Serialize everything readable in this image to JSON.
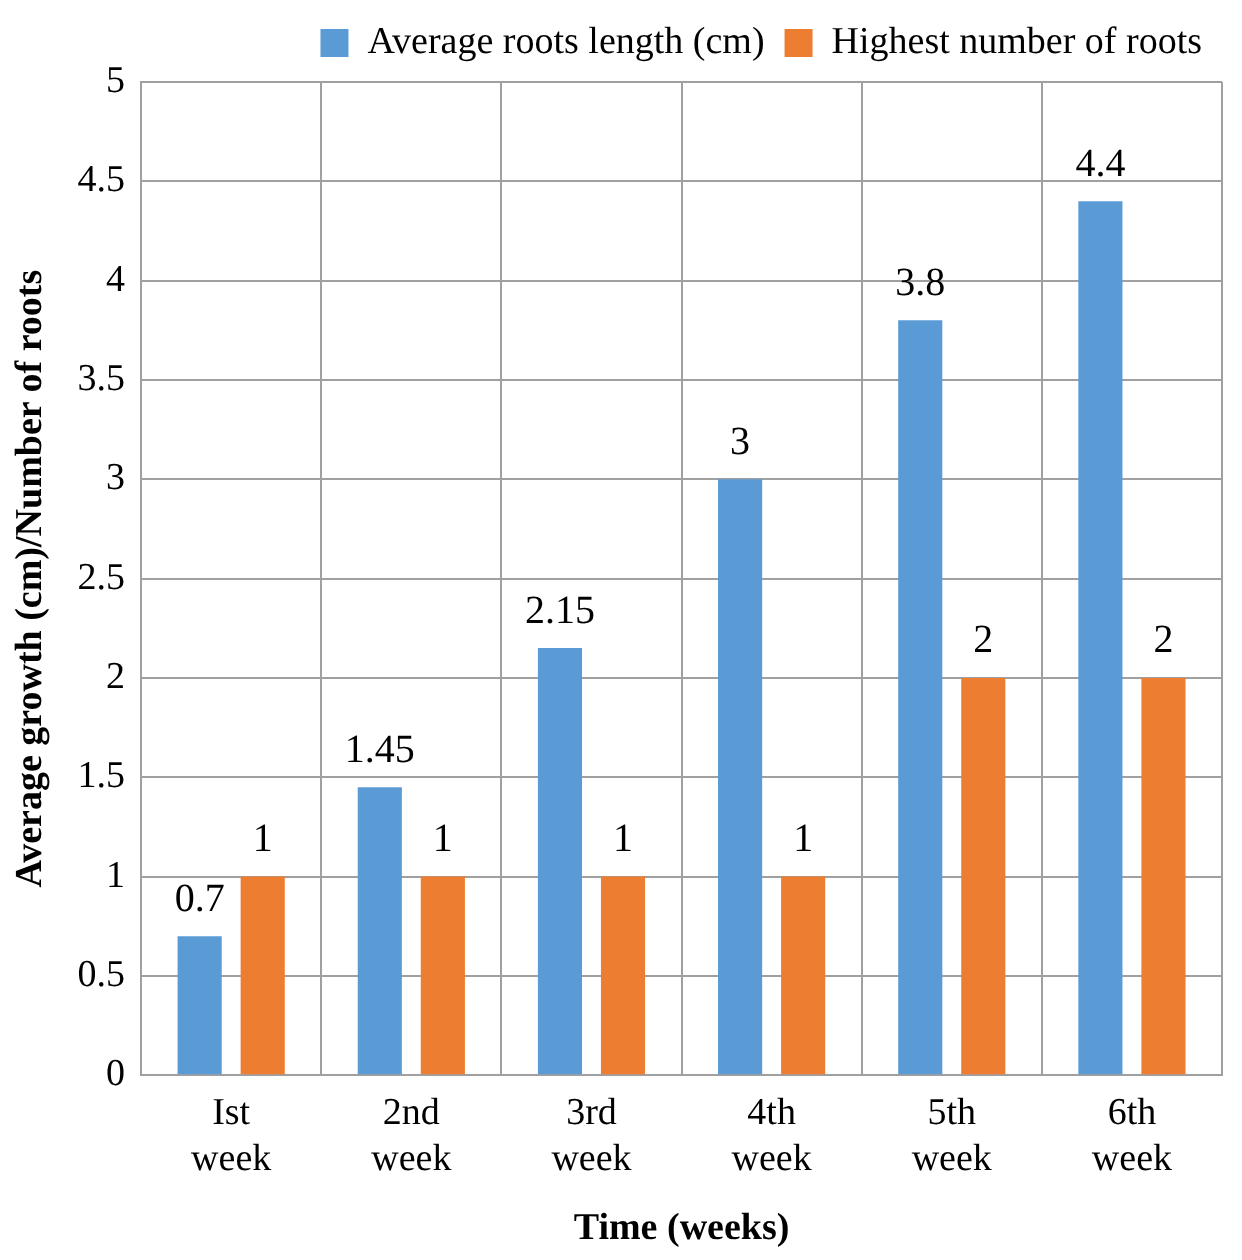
{
  "chart_data": {
    "type": "bar",
    "xlabel": "Time (weeks)",
    "ylabel": "Average growth (cm)/Number of roots",
    "categories": [
      "Ist week",
      "2nd week",
      "3rd week",
      "4th week",
      "5th week",
      "6th week"
    ],
    "series": [
      {
        "name": "Average roots length (cm)",
        "color": "#5b9bd5",
        "values": [
          0.7,
          1.45,
          2.15,
          3,
          3.8,
          4.4
        ]
      },
      {
        "name": "Highest number of roots",
        "color": "#ed7d31",
        "values": [
          1,
          1,
          1,
          1,
          2,
          2
        ]
      }
    ],
    "ylim": [
      0,
      5
    ],
    "yticks": [
      0,
      0.5,
      1,
      1.5,
      2,
      2.5,
      3,
      3.5,
      4,
      4.5,
      5
    ],
    "grid": true,
    "legend": "top",
    "data_labels": true
  }
}
